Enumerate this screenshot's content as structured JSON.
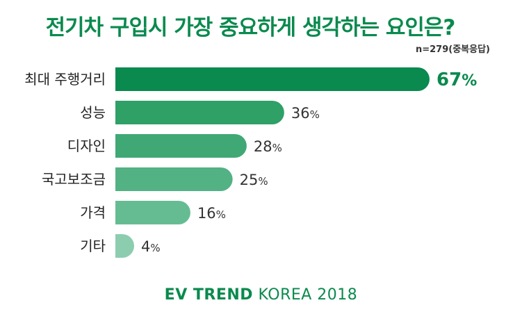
{
  "chart_data": {
    "type": "bar",
    "orientation": "horizontal",
    "title": "전기차 구입시 가장 중요하게 생각하는 요인은?",
    "note": "n=279(중복응답)",
    "categories": [
      "최대 주행거리",
      "성능",
      "디자인",
      "국고보조금",
      "가격",
      "기타"
    ],
    "values": [
      67,
      36,
      28,
      25,
      16,
      4
    ],
    "unit": "%",
    "xlim": [
      0,
      67
    ],
    "colors": [
      "#0a8a4e",
      "#2fa066",
      "#40a874",
      "#52b283",
      "#66bc92",
      "#8ccdb0"
    ]
  },
  "footer": {
    "brand": "EV TREND",
    "rest": " KOREA 2018"
  }
}
